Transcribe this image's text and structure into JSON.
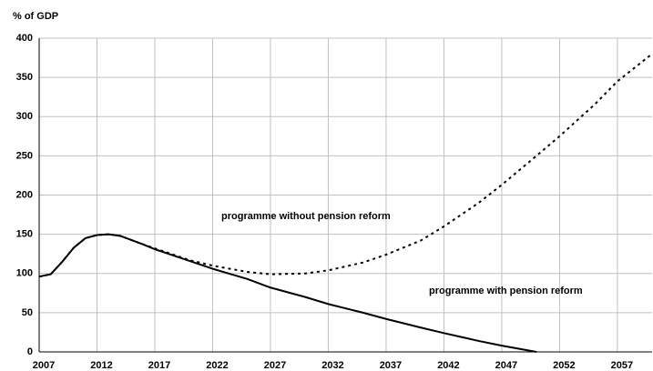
{
  "chart_data": {
    "type": "line",
    "y_label": "% of GDP",
    "x": [
      2007,
      2008,
      2009,
      2010,
      2011,
      2012,
      2013,
      2014,
      2016,
      2017,
      2020,
      2022,
      2025,
      2027,
      2030,
      2032,
      2035,
      2037,
      2040,
      2042,
      2045,
      2047,
      2050,
      2052,
      2055,
      2057,
      2060
    ],
    "series": [
      {
        "name": "programme with pension reform",
        "color": "#000000",
        "dash": "solid",
        "values": [
          96,
          99,
          115,
          133,
          145,
          149,
          150,
          148,
          137,
          131,
          116,
          106,
          93,
          82,
          70,
          61,
          50,
          42,
          31,
          24,
          14,
          8,
          0,
          null,
          null,
          null,
          null
        ]
      },
      {
        "name": "programme without pension reform",
        "color": "#000000",
        "dash": "dotted",
        "values": [
          96,
          99,
          115,
          133,
          145,
          149,
          150,
          148,
          137,
          132,
          117,
          110,
          102,
          99,
          100,
          104,
          114,
          124,
          142,
          160,
          190,
          213,
          250,
          275,
          315,
          345,
          380
        ]
      }
    ],
    "xlim": [
      2007,
      2060
    ],
    "xticks": [
      2007,
      2012,
      2017,
      2022,
      2027,
      2032,
      2037,
      2042,
      2047,
      2052,
      2057
    ],
    "ylim": [
      0,
      400
    ],
    "yticks": [
      0,
      50,
      100,
      150,
      200,
      250,
      300,
      350,
      400
    ],
    "grid": true
  }
}
